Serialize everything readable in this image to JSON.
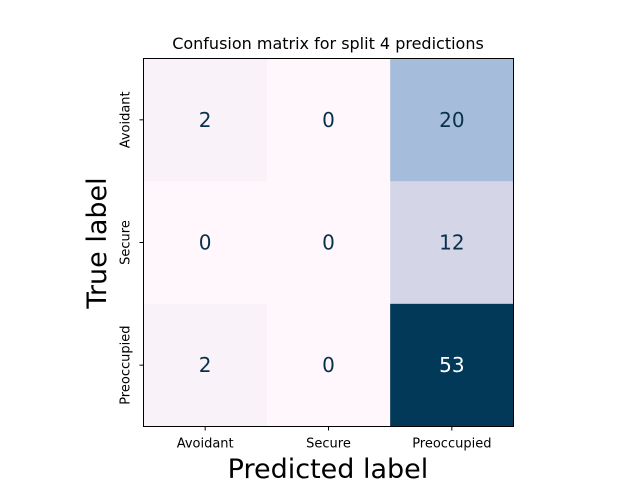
{
  "chart_data": {
    "type": "heatmap",
    "title": "Confusion matrix for split 4 predictions",
    "xlabel": "Predicted label",
    "ylabel": "True label",
    "x_categories": [
      "Avoidant",
      "Secure",
      "Preoccupied"
    ],
    "y_categories": [
      "Avoidant",
      "Secure",
      "Preoccupied"
    ],
    "matrix": [
      [
        2,
        0,
        20
      ],
      [
        0,
        0,
        12
      ],
      [
        2,
        0,
        53
      ]
    ],
    "colormap": "PuBu",
    "vmin": 0,
    "vmax": 53,
    "colorbar": false,
    "grid": false
  }
}
